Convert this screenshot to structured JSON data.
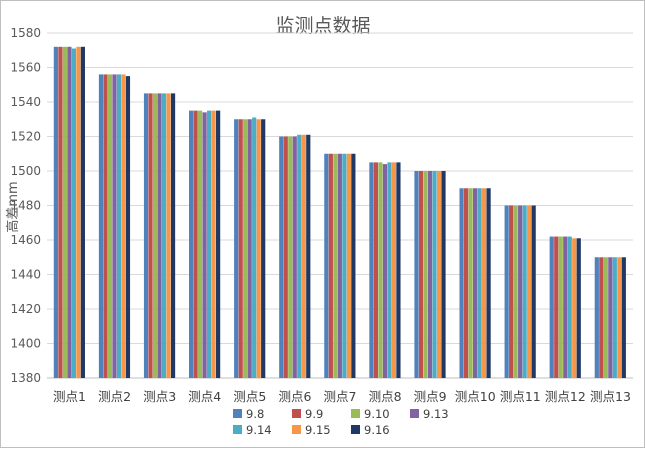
{
  "chart_data": {
    "type": "bar",
    "title": "监测点数据",
    "xlabel": "",
    "ylabel": "高差mm",
    "ylim": [
      1380,
      1580
    ],
    "ytick_step": 20,
    "yticks": [
      "1380",
      "1400",
      "1420",
      "1440",
      "1460",
      "1480",
      "1500",
      "1520",
      "1540",
      "1560",
      "1580"
    ],
    "grid": true,
    "legend_position": "bottom",
    "categories": [
      "测点1",
      "测点2",
      "测点3",
      "测点4",
      "测点5",
      "测点6",
      "测点7",
      "测点8",
      "测点9",
      "测点10",
      "测点11",
      "测点12",
      "测点13"
    ],
    "series": [
      {
        "name": "9.8",
        "color": "#4f81bd",
        "values": [
          1572,
          1556,
          1545,
          1535,
          1530,
          1520,
          1510,
          1505,
          1500,
          1490,
          1480,
          1462,
          1450
        ]
      },
      {
        "name": "9.9",
        "color": "#c0504d",
        "values": [
          1572,
          1556,
          1545,
          1535,
          1530,
          1520,
          1510,
          1505,
          1500,
          1490,
          1480,
          1462,
          1450
        ]
      },
      {
        "name": "9.10",
        "color": "#9bbb59",
        "values": [
          1572,
          1556,
          1545,
          1535,
          1530,
          1520,
          1510,
          1505,
          1500,
          1490,
          1480,
          1462,
          1450
        ]
      },
      {
        "name": "9.13",
        "color": "#8064a2",
        "values": [
          1572,
          1556,
          1545,
          1534,
          1530,
          1520,
          1510,
          1504,
          1500,
          1490,
          1480,
          1462,
          1450
        ]
      },
      {
        "name": "9.14",
        "color": "#4bacc6",
        "values": [
          1571,
          1556,
          1545,
          1535,
          1531,
          1521,
          1510,
          1505,
          1500,
          1490,
          1480,
          1462,
          1450
        ]
      },
      {
        "name": "9.15",
        "color": "#f79646",
        "values": [
          1572,
          1556,
          1545,
          1535,
          1530,
          1521,
          1510,
          1505,
          1500,
          1490,
          1480,
          1461,
          1450
        ]
      },
      {
        "name": "9.16",
        "color": "#1f3864",
        "values": [
          1572,
          1555,
          1545,
          1535,
          1530,
          1521,
          1510,
          1505,
          1500,
          1490,
          1480,
          1461,
          1450
        ]
      }
    ]
  }
}
